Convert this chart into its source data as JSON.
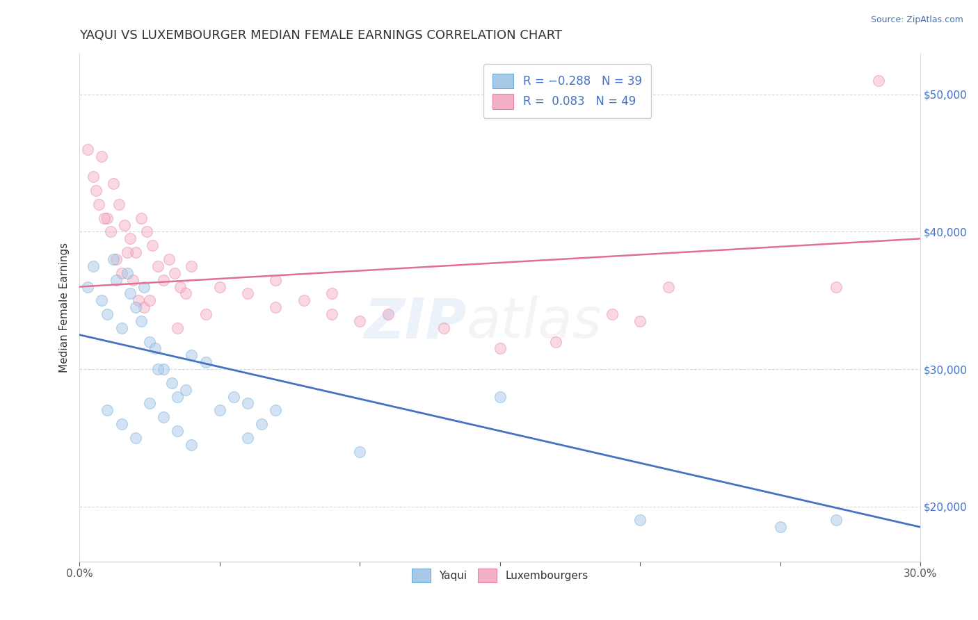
{
  "title": "YAQUI VS LUXEMBOURGER MEDIAN FEMALE EARNINGS CORRELATION CHART",
  "source": "Source: ZipAtlas.com",
  "ylabel": "Median Female Earnings",
  "xlim": [
    0.0,
    0.3
  ],
  "ylim": [
    16000,
    53000
  ],
  "yticks": [
    20000,
    30000,
    40000,
    50000
  ],
  "ytick_labels": [
    "$20,000",
    "$30,000",
    "$40,000",
    "$50,000"
  ],
  "xticks": [
    0.0,
    0.05,
    0.1,
    0.15,
    0.2,
    0.25,
    0.3
  ],
  "xtick_labels": [
    "0.0%",
    "",
    "",
    "",
    "",
    "",
    "30.0%"
  ],
  "legend_labels": [
    "R = −0.288   N = 39",
    "R =  0.083   N = 49"
  ],
  "yaqui_fill": "#a8c8e8",
  "yaqui_edge": "#6aaed6",
  "luxembourger_fill": "#f4b0c8",
  "luxembourger_edge": "#e880a0",
  "trend_yaqui_color": "#4472c4",
  "trend_luxembourger_color": "#e07090",
  "background_color": "#ffffff",
  "title_fontsize": 13,
  "axis_label_fontsize": 11,
  "tick_fontsize": 11,
  "legend_fontsize": 12,
  "point_size": 130,
  "point_alpha": 0.5,
  "blue_trend_x0": 0.0,
  "blue_trend_y0": 32500,
  "blue_trend_x1": 0.3,
  "blue_trend_y1": 18500,
  "pink_trend_x0": 0.0,
  "pink_trend_y0": 36000,
  "pink_trend_x1": 0.3,
  "pink_trend_y1": 39500,
  "yaqui_x": [
    0.003,
    0.005,
    0.008,
    0.01,
    0.013,
    0.015,
    0.018,
    0.02,
    0.022,
    0.025,
    0.027,
    0.03,
    0.033,
    0.035,
    0.038,
    0.012,
    0.017,
    0.023,
    0.028,
    0.04,
    0.045,
    0.05,
    0.055,
    0.06,
    0.065,
    0.1,
    0.15,
    0.2,
    0.25,
    0.27,
    0.01,
    0.015,
    0.02,
    0.025,
    0.03,
    0.035,
    0.04,
    0.06,
    0.07
  ],
  "yaqui_y": [
    36000,
    37500,
    35000,
    34000,
    36500,
    33000,
    35500,
    34500,
    33500,
    32000,
    31500,
    30000,
    29000,
    28000,
    28500,
    38000,
    37000,
    36000,
    30000,
    31000,
    30500,
    27000,
    28000,
    27500,
    26000,
    24000,
    28000,
    19000,
    18500,
    19000,
    27000,
    26000,
    25000,
    27500,
    26500,
    25500,
    24500,
    25000,
    27000
  ],
  "luxembourger_x": [
    0.003,
    0.005,
    0.006,
    0.008,
    0.01,
    0.012,
    0.014,
    0.016,
    0.018,
    0.02,
    0.022,
    0.024,
    0.026,
    0.028,
    0.03,
    0.032,
    0.034,
    0.036,
    0.038,
    0.04,
    0.045,
    0.05,
    0.06,
    0.07,
    0.08,
    0.09,
    0.1,
    0.11,
    0.13,
    0.15,
    0.17,
    0.19,
    0.2,
    0.21,
    0.007,
    0.009,
    0.011,
    0.013,
    0.015,
    0.017,
    0.019,
    0.021,
    0.023,
    0.025,
    0.035,
    0.07,
    0.09,
    0.27,
    0.285
  ],
  "luxembourger_y": [
    46000,
    44000,
    43000,
    45500,
    41000,
    43500,
    42000,
    40500,
    39500,
    38500,
    41000,
    40000,
    39000,
    37500,
    36500,
    38000,
    37000,
    36000,
    35500,
    37500,
    34000,
    36000,
    35500,
    34500,
    35000,
    34000,
    33500,
    34000,
    33000,
    31500,
    32000,
    34000,
    33500,
    36000,
    42000,
    41000,
    40000,
    38000,
    37000,
    38500,
    36500,
    35000,
    34500,
    35000,
    33000,
    36500,
    35500,
    36000,
    51000
  ]
}
